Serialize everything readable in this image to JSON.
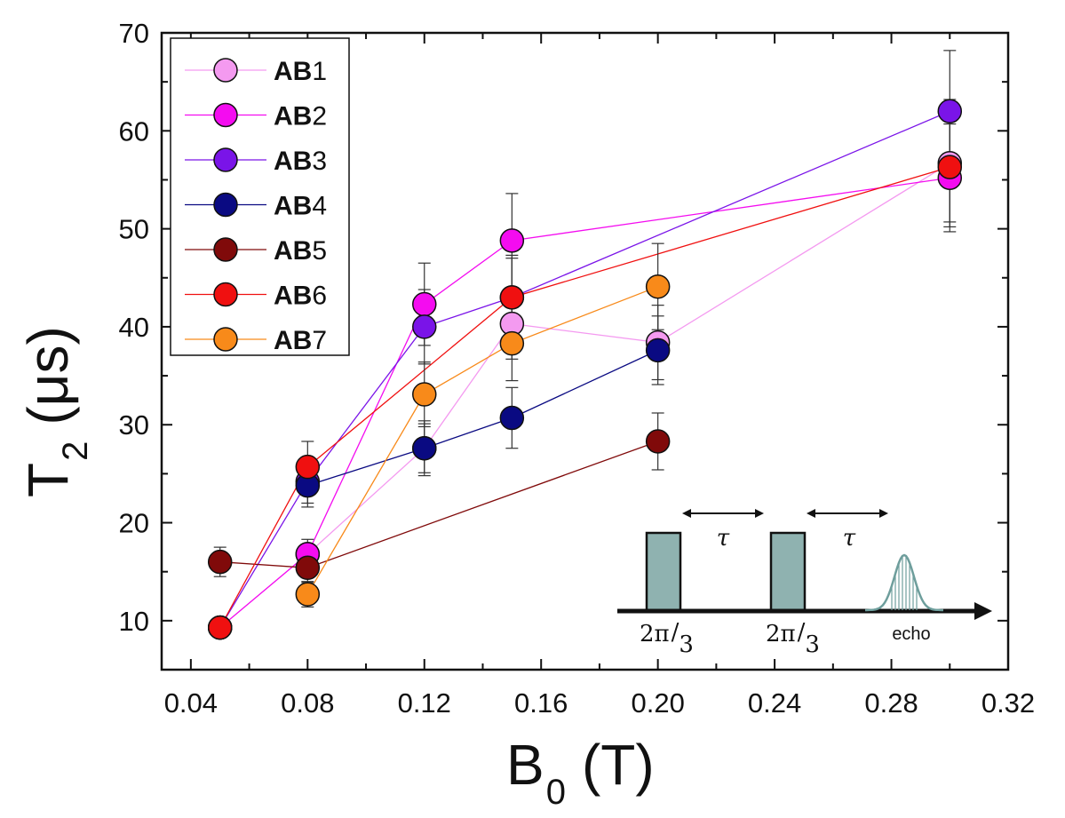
{
  "chart_data": {
    "type": "line",
    "xlabel": "B",
    "xlabel_sub": "0",
    "xlabel_unit": "(T)",
    "ylabel": "T",
    "ylabel_sub": "2",
    "ylabel_unit": "(μs)",
    "xlim": [
      0.03,
      0.32
    ],
    "ylim": [
      5,
      70
    ],
    "xticks": [
      0.04,
      0.08,
      0.12,
      0.16,
      0.2,
      0.24,
      0.28,
      0.32
    ],
    "xtick_labels": [
      "0.04",
      "0.08",
      "0.12",
      "0.16",
      "0.20",
      "0.24",
      "0.28",
      "0.32"
    ],
    "yticks": [
      10,
      20,
      30,
      40,
      50,
      60,
      70
    ],
    "ytick_labels": [
      "10",
      "20",
      "30",
      "40",
      "50",
      "60",
      "70"
    ],
    "legend_position": "top-left",
    "series": [
      {
        "name": "AB1",
        "bold": "AB",
        "num": "1",
        "color": "#f49af0",
        "x": [
          0.05,
          0.08,
          0.12,
          0.15,
          0.2,
          0.3
        ],
        "y": [
          9.3,
          16.8,
          27.6,
          40.3,
          38.4,
          56.7
        ],
        "err": [
          0.8,
          1.0,
          2.8,
          3.6,
          3.8,
          6.5
        ]
      },
      {
        "name": "AB2",
        "bold": "AB",
        "num": "2",
        "color": "#f40cf0",
        "x": [
          0.05,
          0.08,
          0.12,
          0.15,
          0.3
        ],
        "y": [
          9.3,
          16.8,
          42.3,
          48.8,
          55.2
        ],
        "err": [
          0.8,
          1.5,
          4.2,
          4.8,
          5.5
        ]
      },
      {
        "name": "AB3",
        "bold": "AB",
        "num": "3",
        "color": "#7a14e8",
        "x": [
          0.05,
          0.08,
          0.12,
          0.15,
          0.3
        ],
        "y": [
          9.3,
          24.2,
          40.0,
          43.0,
          62.0
        ],
        "err": [
          0.8,
          2.2,
          3.8,
          4.0,
          6.2
        ]
      },
      {
        "name": "AB4",
        "bold": "AB",
        "num": "4",
        "color": "#0a0a82",
        "x": [
          0.08,
          0.12,
          0.15,
          0.2
        ],
        "y": [
          23.8,
          27.6,
          30.7,
          37.6
        ],
        "err": [
          2.2,
          2.5,
          3.1,
          3.5
        ]
      },
      {
        "name": "AB5",
        "bold": "AB",
        "num": "5",
        "color": "#800a0a",
        "x": [
          0.05,
          0.08,
          0.2
        ],
        "y": [
          16.0,
          15.4,
          28.3
        ],
        "err": [
          1.5,
          1.5,
          2.9
        ]
      },
      {
        "name": "AB6",
        "bold": "AB",
        "num": "6",
        "color": "#f01010",
        "x": [
          0.05,
          0.08,
          0.15,
          0.3
        ],
        "y": [
          9.3,
          25.7,
          43.0,
          56.3
        ],
        "err": [
          0.8,
          2.6,
          4.3,
          5.6
        ]
      },
      {
        "name": "AB7",
        "bold": "AB",
        "num": "7",
        "color": "#f88a1a",
        "x": [
          0.08,
          0.12,
          0.15,
          0.2
        ],
        "y": [
          12.7,
          33.1,
          38.3,
          44.1
        ],
        "err": [
          1.3,
          3.3,
          3.8,
          4.4
        ]
      }
    ],
    "inset": {
      "pulse1_label_num": "2π",
      "pulse1_label_den": "3",
      "pulse2_label_num": "2π",
      "pulse2_label_den": "3",
      "delay1_label": "τ",
      "delay2_label": "τ",
      "echo_label": "echo",
      "pulse_color": "#8fb2b0",
      "echo_color": "#6e9e9c"
    }
  }
}
